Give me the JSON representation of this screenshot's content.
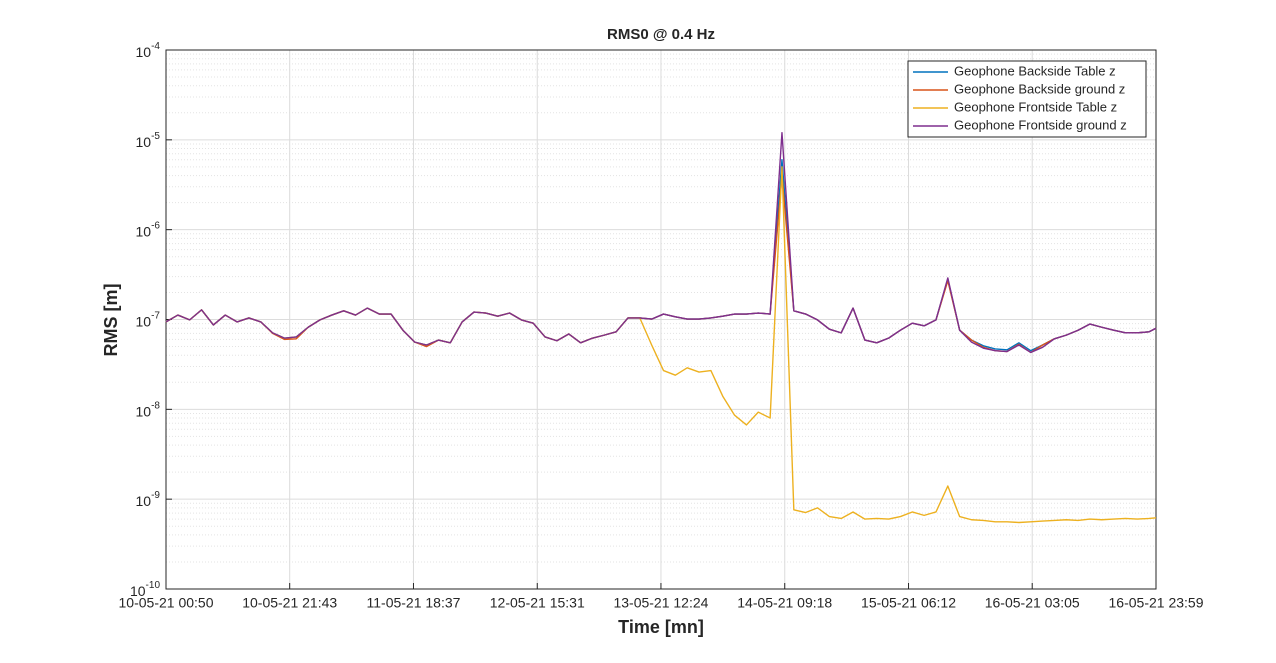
{
  "chart_data": {
    "type": "line",
    "title": "RMS0 @ 0.4 Hz",
    "x_label": "Time [mn]",
    "y_label": "RMS [m]",
    "x": [
      "10-05-21 00:50",
      "10-05-21 02:50",
      "10-05-21 04:50",
      "10-05-21 06:50",
      "10-05-21 08:50",
      "10-05-21 10:50",
      "10-05-21 12:50",
      "10-05-21 14:50",
      "10-05-21 16:50",
      "10-05-21 18:50",
      "10-05-21 20:50",
      "10-05-21 22:50",
      "11-05-21 00:50",
      "11-05-21 02:50",
      "11-05-21 04:50",
      "11-05-21 06:50",
      "11-05-21 08:50",
      "11-05-21 10:50",
      "11-05-21 12:50",
      "11-05-21 14:50",
      "11-05-21 16:50",
      "11-05-21 18:50",
      "11-05-21 20:50",
      "11-05-21 22:50",
      "12-05-21 00:50",
      "12-05-21 02:50",
      "12-05-21 04:50",
      "12-05-21 06:50",
      "12-05-21 08:50",
      "12-05-21 10:50",
      "12-05-21 12:50",
      "12-05-21 14:50",
      "12-05-21 16:50",
      "12-05-21 18:50",
      "12-05-21 20:50",
      "12-05-21 22:50",
      "13-05-21 00:50",
      "13-05-21 02:50",
      "13-05-21 04:50",
      "13-05-21 06:50",
      "13-05-21 08:50",
      "13-05-21 10:50",
      "13-05-21 12:50",
      "13-05-21 14:50",
      "13-05-21 16:50",
      "13-05-21 18:50",
      "13-05-21 20:50",
      "13-05-21 22:50",
      "14-05-21 00:50",
      "14-05-21 02:50",
      "14-05-21 04:50",
      "14-05-21 06:50",
      "14-05-21 08:50",
      "14-05-21 10:50",
      "14-05-21 12:50",
      "14-05-21 14:50",
      "14-05-21 16:50",
      "14-05-21 18:50",
      "14-05-21 20:50",
      "14-05-21 22:50",
      "15-05-21 00:50",
      "15-05-21 02:50",
      "15-05-21 04:50",
      "15-05-21 06:50",
      "15-05-21 08:50",
      "15-05-21 10:50",
      "15-05-21 12:50",
      "15-05-21 14:50",
      "15-05-21 16:50",
      "15-05-21 18:50",
      "15-05-21 20:50",
      "15-05-21 22:50",
      "16-05-21 00:50",
      "16-05-21 02:50",
      "16-05-21 04:50",
      "16-05-21 06:50",
      "16-05-21 08:50",
      "16-05-21 10:50",
      "16-05-21 12:50",
      "16-05-21 14:50",
      "16-05-21 16:50",
      "16-05-21 18:50",
      "16-05-21 20:50",
      "16-05-21 22:50",
      "16-05-21 23:59"
    ],
    "series": [
      {
        "name": "Geophone Backside Table z",
        "color": "#0072BD",
        "values": [
          9.4e-08,
          1.12e-07,
          9.9e-08,
          1.28e-07,
          8.7e-08,
          1.12e-07,
          9.4e-08,
          1.04e-07,
          9.4e-08,
          7.1e-08,
          6.2e-08,
          6.4e-08,
          8.2e-08,
          9.9e-08,
          1.12e-07,
          1.25e-07,
          1.12e-07,
          1.34e-07,
          1.15e-07,
          1.15e-07,
          7.6e-08,
          5.6e-08,
          5.2e-08,
          5.9e-08,
          5.5e-08,
          9.4e-08,
          1.21e-07,
          1.18e-07,
          1.09e-07,
          1.18e-07,
          9.9e-08,
          9.1e-08,
          6.4e-08,
          5.8e-08,
          6.9e-08,
          5.5e-08,
          6.2e-08,
          6.7e-08,
          7.3e-08,
          1.04e-07,
          1.04e-07,
          1.01e-07,
          1.15e-07,
          1.07e-07,
          1.01e-07,
          1.01e-07,
          1.04e-07,
          1.09e-07,
          1.15e-07,
          1.15e-07,
          1.18e-07,
          1.15e-07,
          6e-06,
          1.25e-07,
          1.15e-07,
          9.9e-08,
          7.8e-08,
          7.1e-08,
          1.34e-07,
          5.9e-08,
          5.5e-08,
          6.2e-08,
          7.6e-08,
          9.1e-08,
          8.5e-08,
          9.9e-08,
          2.8e-07,
          7.6e-08,
          5.9e-08,
          5.1e-08,
          4.7e-08,
          4.6e-08,
          5.5e-08,
          4.5e-08,
          5.2e-08,
          6.1e-08,
          6.7e-08,
          7.6e-08,
          8.9e-08,
          8.2e-08,
          7.6e-08,
          7.1e-08,
          7.1e-08,
          7.3e-08,
          8e-08
        ]
      },
      {
        "name": "Geophone Backside ground z",
        "color": "#D95319",
        "values": [
          9.4e-08,
          1.12e-07,
          9.9e-08,
          1.28e-07,
          8.7e-08,
          1.12e-07,
          9.4e-08,
          1.04e-07,
          9.4e-08,
          7e-08,
          6e-08,
          6.1e-08,
          8.2e-08,
          9.9e-08,
          1.12e-07,
          1.25e-07,
          1.12e-07,
          1.34e-07,
          1.15e-07,
          1.15e-07,
          7.6e-08,
          5.6e-08,
          5e-08,
          5.9e-08,
          5.5e-08,
          9.4e-08,
          1.21e-07,
          1.18e-07,
          1.09e-07,
          1.18e-07,
          9.9e-08,
          9.1e-08,
          6.4e-08,
          5.8e-08,
          6.9e-08,
          5.5e-08,
          6.2e-08,
          6.7e-08,
          7.3e-08,
          1.04e-07,
          1.04e-07,
          1.01e-07,
          1.15e-07,
          1.07e-07,
          1.01e-07,
          1.01e-07,
          1.04e-07,
          1.09e-07,
          1.15e-07,
          1.15e-07,
          1.18e-07,
          1.15e-07,
          4e-06,
          1.25e-07,
          1.15e-07,
          9.9e-08,
          7.8e-08,
          7.1e-08,
          1.34e-07,
          5.9e-08,
          5.5e-08,
          6.2e-08,
          7.6e-08,
          9.1e-08,
          8.5e-08,
          9.9e-08,
          2.7e-07,
          7.6e-08,
          5.9e-08,
          4.9e-08,
          4.5e-08,
          4.4e-08,
          5.3e-08,
          4.3e-08,
          5.2e-08,
          6.1e-08,
          6.7e-08,
          7.6e-08,
          8.9e-08,
          8.2e-08,
          7.6e-08,
          7.1e-08,
          7.1e-08,
          7.3e-08,
          8e-08
        ]
      },
      {
        "name": "Geophone Frontside Table z",
        "color": "#EDB120",
        "values": [
          9.4e-08,
          1.12e-07,
          9.9e-08,
          1.28e-07,
          8.7e-08,
          1.12e-07,
          9.4e-08,
          1.04e-07,
          9.4e-08,
          7.1e-08,
          6.2e-08,
          6.4e-08,
          8.2e-08,
          9.9e-08,
          1.12e-07,
          1.25e-07,
          1.12e-07,
          1.34e-07,
          1.15e-07,
          1.15e-07,
          7.6e-08,
          5.6e-08,
          5.2e-08,
          5.9e-08,
          5.5e-08,
          9.4e-08,
          1.21e-07,
          1.18e-07,
          1.09e-07,
          1.18e-07,
          9.9e-08,
          9.1e-08,
          6.4e-08,
          5.8e-08,
          6.9e-08,
          5.5e-08,
          6.2e-08,
          6.7e-08,
          7.3e-08,
          1.04e-07,
          1.04e-07,
          5.2e-08,
          2.7e-08,
          2.4e-08,
          2.9e-08,
          2.6e-08,
          2.7e-08,
          1.4e-08,
          8.6e-09,
          6.7e-09,
          9.3e-09,
          8e-09,
          5e-06,
          7.6e-10,
          7.1e-10,
          8e-10,
          6.4e-10,
          6.1e-10,
          7.2e-10,
          6e-10,
          6.1e-10,
          6e-10,
          6.4e-10,
          7.2e-10,
          6.6e-10,
          7.2e-10,
          1.4e-09,
          6.4e-10,
          5.9e-10,
          5.8e-10,
          5.6e-10,
          5.6e-10,
          5.5e-10,
          5.6e-10,
          5.7e-10,
          5.8e-10,
          5.9e-10,
          5.8e-10,
          6e-10,
          5.9e-10,
          6e-10,
          6.1e-10,
          6e-10,
          6.1e-10,
          6.2e-10
        ]
      },
      {
        "name": "Geophone Frontside ground z",
        "color": "#7E2F8E",
        "values": [
          9.4e-08,
          1.12e-07,
          9.9e-08,
          1.28e-07,
          8.7e-08,
          1.12e-07,
          9.4e-08,
          1.04e-07,
          9.4e-08,
          7.1e-08,
          6.2e-08,
          6.4e-08,
          8.2e-08,
          9.9e-08,
          1.12e-07,
          1.25e-07,
          1.12e-07,
          1.34e-07,
          1.15e-07,
          1.15e-07,
          7.6e-08,
          5.6e-08,
          5.2e-08,
          5.9e-08,
          5.5e-08,
          9.4e-08,
          1.21e-07,
          1.18e-07,
          1.09e-07,
          1.18e-07,
          9.9e-08,
          9.1e-08,
          6.4e-08,
          5.8e-08,
          6.9e-08,
          5.5e-08,
          6.2e-08,
          6.7e-08,
          7.3e-08,
          1.04e-07,
          1.04e-07,
          1.01e-07,
          1.15e-07,
          1.07e-07,
          1.01e-07,
          1.01e-07,
          1.04e-07,
          1.09e-07,
          1.15e-07,
          1.15e-07,
          1.18e-07,
          1.15e-07,
          1.2e-05,
          1.25e-07,
          1.15e-07,
          9.9e-08,
          7.8e-08,
          7.1e-08,
          1.34e-07,
          5.9e-08,
          5.5e-08,
          6.2e-08,
          7.6e-08,
          9.1e-08,
          8.5e-08,
          9.9e-08,
          2.9e-07,
          7.6e-08,
          5.6e-08,
          4.8e-08,
          4.5e-08,
          4.4e-08,
          5.2e-08,
          4.3e-08,
          4.9e-08,
          6.1e-08,
          6.7e-08,
          7.6e-08,
          8.9e-08,
          8.2e-08,
          7.6e-08,
          7.1e-08,
          7.1e-08,
          7.3e-08,
          8e-08
        ]
      }
    ],
    "xlim": [
      "10-05-21 00:50",
      "16-05-21 23:59"
    ],
    "xticks": [
      "10-05-21 00:50",
      "10-05-21 21:43",
      "11-05-21 18:37",
      "12-05-21 15:31",
      "13-05-21 12:24",
      "14-05-21 09:18",
      "15-05-21 06:12",
      "16-05-21 03:05",
      "16-05-21 23:59"
    ],
    "ylim": [
      1e-10,
      0.0001
    ],
    "yticks": [
      {
        "value": 1e-10,
        "label": "10-10"
      },
      {
        "value": 1e-09,
        "label": "10-9"
      },
      {
        "value": 1e-08,
        "label": "10-8"
      },
      {
        "value": 1e-07,
        "label": "10-7"
      },
      {
        "value": 1e-06,
        "label": "10-6"
      },
      {
        "value": 1e-05,
        "label": "10-5"
      },
      {
        "value": 0.0001,
        "label": "10-4"
      }
    ],
    "y_scale": "log",
    "grid": true,
    "minor_grid": true,
    "legend_position": "top-right"
  }
}
